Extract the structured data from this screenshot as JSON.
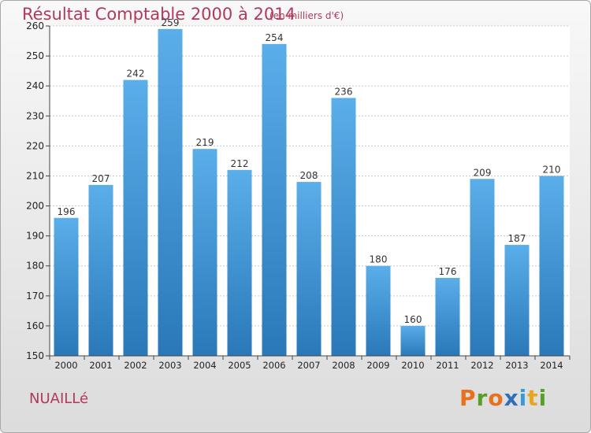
{
  "header": {
    "title": "Résultat Comptable 2000 à 2014",
    "subtitle": "(en milliers d'€)"
  },
  "footer": {
    "commune": "NUAILLé",
    "logo_letters": [
      "P",
      "r",
      "o",
      "x",
      "i",
      "t",
      "i"
    ]
  },
  "colors": {
    "title": "#b03a5b",
    "bar_top": "#5aaeea",
    "bar_bottom": "#2a78b8",
    "logo": [
      "#e8701e",
      "#5a9e2a",
      "#e8701e",
      "#2f6fb7",
      "#3a9ad9",
      "#e8a51e",
      "#5a9e2a"
    ]
  },
  "chart_data": {
    "type": "bar",
    "title": "Résultat Comptable 2000 à 2014",
    "subtitle": "(en milliers d'€)",
    "xlabel": "",
    "ylabel": "",
    "categories": [
      "2000",
      "2001",
      "2002",
      "2003",
      "2004",
      "2005",
      "2006",
      "2007",
      "2008",
      "2009",
      "2010",
      "2011",
      "2012",
      "2013",
      "2014"
    ],
    "values": [
      196,
      207,
      242,
      259,
      219,
      212,
      254,
      208,
      236,
      180,
      160,
      176,
      209,
      187,
      210
    ],
    "ylim": [
      150,
      260
    ],
    "yticks": [
      150,
      160,
      170,
      180,
      190,
      200,
      210,
      220,
      230,
      240,
      250,
      260
    ],
    "grid": true
  }
}
